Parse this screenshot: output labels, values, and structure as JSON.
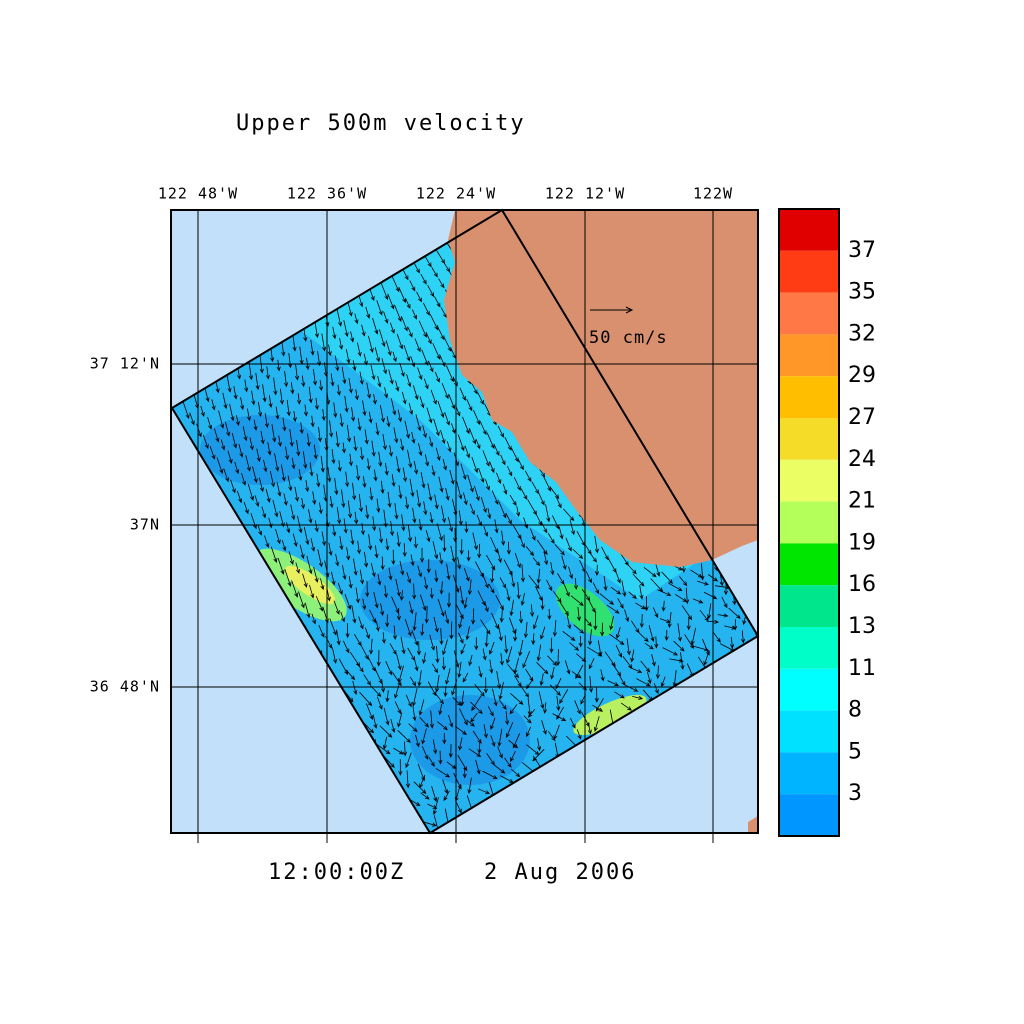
{
  "title": "Upper 500m velocity",
  "longitude_labels": [
    "122 48'W",
    "122 36'W",
    "122 24'W",
    "122 12'W",
    "122W"
  ],
  "latitude_labels": [
    "37 12'N",
    "37N",
    "36 48'N"
  ],
  "scale_label": "50 cm/s",
  "time": "12:00:00Z",
  "date": "2 Aug 2006",
  "colorbar": {
    "labels": [
      "37",
      "35",
      "32",
      "29",
      "27",
      "24",
      "21",
      "19",
      "16",
      "13",
      "11",
      "8",
      "5",
      "3"
    ],
    "colors": [
      "#e00000",
      "#ff3c14",
      "#ff7846",
      "#ff9628",
      "#ffbe00",
      "#f5dc28",
      "#ebff64",
      "#b4ff5a",
      "#00e600",
      "#00e68c",
      "#00ffc8",
      "#00ffff",
      "#00e1ff",
      "#00b4ff",
      "#0096ff"
    ]
  }
}
